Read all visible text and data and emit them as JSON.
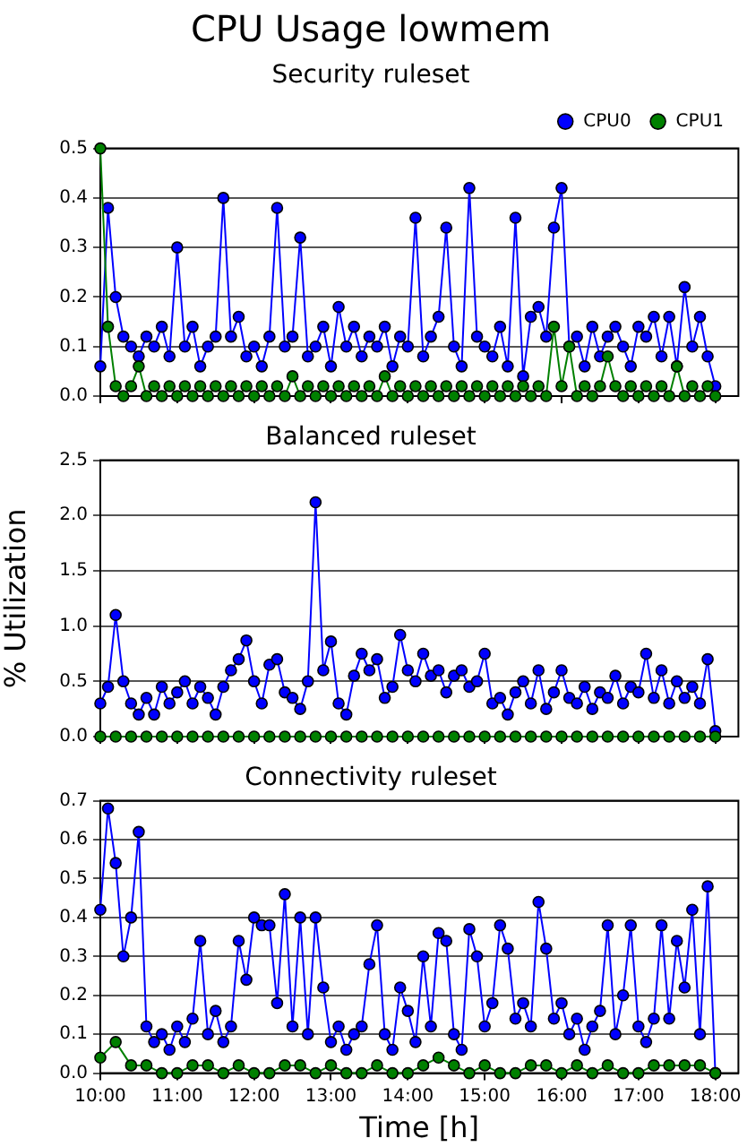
{
  "chart_data": [
    {
      "type": "line",
      "title": "CPU Usage lowmem",
      "subtitle": "Security ruleset",
      "legend": "top right",
      "grid": "y",
      "marker": "circle",
      "line_style": "solid",
      "tick_labels": "y",
      "x": [
        10,
        10.1,
        10.2,
        10.3,
        10.4,
        10.5,
        10.6,
        10.7,
        10.8,
        10.9,
        11,
        11.1,
        11.2,
        11.3,
        11.4,
        11.5,
        11.6,
        11.7,
        11.8,
        11.9,
        12,
        12.1,
        12.2,
        12.3,
        12.4,
        12.5,
        12.6,
        12.7,
        12.8,
        12.9,
        13,
        13.1,
        13.2,
        13.3,
        13.4,
        13.5,
        13.6,
        13.7,
        13.8,
        13.9,
        14,
        14.1,
        14.2,
        14.3,
        14.4,
        14.5,
        14.6,
        14.7,
        14.8,
        14.9,
        15,
        15.1,
        15.2,
        15.3,
        15.4,
        15.5,
        15.6,
        15.7,
        15.8,
        15.9,
        16,
        16.1,
        16.2,
        16.3,
        16.4,
        16.5,
        16.6,
        16.7,
        16.8,
        16.9,
        17,
        17.1,
        17.2,
        17.3,
        17.4,
        17.5,
        17.6,
        17.7,
        17.8,
        17.9,
        18
      ],
      "xlim": [
        10,
        18.3
      ],
      "ylim": [
        0,
        0.5
      ],
      "yticks": [
        {
          "value": 0,
          "label": "0.0"
        },
        0.1,
        0.2,
        0.3,
        0.4,
        0.5
      ],
      "series": [
        {
          "name": "CPU0",
          "color": "#0000ff",
          "values": [
            0.06,
            0.38,
            0.2,
            0.12,
            0.1,
            0.08,
            0.12,
            0.1,
            0.14,
            0.08,
            0.3,
            0.1,
            0.14,
            0.06,
            0.1,
            0.12,
            0.4,
            0.12,
            0.16,
            0.08,
            0.1,
            0.06,
            0.12,
            0.38,
            0.1,
            0.12,
            0.32,
            0.08,
            0.1,
            0.14,
            0.06,
            0.18,
            0.1,
            0.14,
            0.08,
            0.12,
            0.1,
            0.14,
            0.06,
            0.12,
            0.1,
            0.36,
            0.08,
            0.12,
            0.16,
            0.34,
            0.1,
            0.06,
            0.42,
            0.12,
            0.1,
            0.08,
            0.14,
            0.06,
            0.36,
            0.04,
            0.16,
            0.18,
            0.12,
            0.34,
            0.42,
            0.1,
            0.12,
            0.06,
            0.14,
            0.08,
            0.12,
            0.14,
            0.1,
            0.06,
            0.14,
            0.12,
            0.16,
            0.08,
            0.16,
            0.06,
            0.22,
            0.1,
            0.16,
            0.08,
            0.02
          ]
        },
        {
          "name": "CPU1",
          "color": "#008000",
          "values": [
            0.5,
            0.14,
            0.02,
            0,
            0.02,
            0.06,
            0,
            0.02,
            0,
            0.02,
            0,
            0.02,
            0,
            0.02,
            0,
            0.02,
            0,
            0.02,
            0,
            0.02,
            0,
            0.02,
            0,
            0.02,
            0,
            0.04,
            0,
            0.02,
            0,
            0.02,
            0,
            0.02,
            0,
            0.02,
            0,
            0.02,
            0,
            0.04,
            0,
            0.02,
            0,
            0.02,
            0,
            0.02,
            0,
            0.02,
            0,
            0.02,
            0,
            0.02,
            0,
            0.02,
            0,
            0.02,
            0,
            0.02,
            0,
            0.02,
            0,
            0.14,
            0.02,
            0.1,
            0,
            0.02,
            0,
            0.02,
            0.08,
            0.02,
            0,
            0.02,
            0,
            0.02,
            0,
            0.02,
            0,
            0.06,
            0,
            0.02,
            0,
            0.02,
            0
          ]
        }
      ]
    },
    {
      "type": "line",
      "title": "Balanced ruleset",
      "ylabel": "% Utilization",
      "grid": "y",
      "marker": "circle",
      "line_style": "solid",
      "tick_labels": "y",
      "x": [
        10,
        10.1,
        10.2,
        10.3,
        10.4,
        10.5,
        10.6,
        10.7,
        10.8,
        10.9,
        11,
        11.1,
        11.2,
        11.3,
        11.4,
        11.5,
        11.6,
        11.7,
        11.8,
        11.9,
        12,
        12.1,
        12.2,
        12.3,
        12.4,
        12.5,
        12.6,
        12.7,
        12.8,
        12.9,
        13,
        13.1,
        13.2,
        13.3,
        13.4,
        13.5,
        13.6,
        13.7,
        13.8,
        13.9,
        14,
        14.1,
        14.2,
        14.3,
        14.4,
        14.5,
        14.6,
        14.7,
        14.8,
        14.9,
        15,
        15.1,
        15.2,
        15.3,
        15.4,
        15.5,
        15.6,
        15.7,
        15.8,
        15.9,
        16,
        16.1,
        16.2,
        16.3,
        16.4,
        16.5,
        16.6,
        16.7,
        16.8,
        16.9,
        17,
        17.1,
        17.2,
        17.3,
        17.4,
        17.5,
        17.6,
        17.7,
        17.8,
        17.9,
        18
      ],
      "xlim": [
        10,
        18.3
      ],
      "ylim": [
        0,
        2.5
      ],
      "yticks": [
        {
          "value": 0,
          "label": "0.0"
        },
        0.5,
        {
          "value": 1,
          "label": "1.0"
        },
        1.5,
        {
          "value": 2,
          "label": "2.0"
        },
        2.5
      ],
      "series": [
        {
          "color": "#0000ff",
          "values": [
            0.3,
            0.45,
            1.1,
            0.5,
            0.3,
            0.2,
            0.35,
            0.2,
            0.45,
            0.3,
            0.4,
            0.5,
            0.3,
            0.45,
            0.35,
            0.2,
            0.45,
            0.6,
            0.7,
            0.87,
            0.5,
            0.3,
            0.65,
            0.7,
            0.4,
            0.35,
            0.25,
            0.5,
            2.12,
            0.6,
            0.86,
            0.3,
            0.2,
            0.55,
            0.75,
            0.6,
            0.7,
            0.35,
            0.45,
            0.92,
            0.6,
            0.5,
            0.75,
            0.55,
            0.6,
            0.4,
            0.55,
            0.6,
            0.45,
            0.5,
            0.75,
            0.3,
            0.35,
            0.2,
            0.4,
            0.5,
            0.3,
            0.6,
            0.25,
            0.4,
            0.6,
            0.35,
            0.3,
            0.45,
            0.25,
            0.4,
            0.35,
            0.55,
            0.3,
            0.45,
            0.4,
            0.75,
            0.35,
            0.6,
            0.3,
            0.5,
            0.35,
            0.45,
            0.3,
            0.7,
            0.05
          ]
        },
        {
          "color": "#008000",
          "x": [
            10,
            10.2,
            10.4,
            10.6,
            10.8,
            11,
            11.2,
            11.4,
            11.6,
            11.8,
            12,
            12.2,
            12.4,
            12.6,
            12.8,
            13,
            13.2,
            13.4,
            13.6,
            13.8,
            14,
            14.2,
            14.4,
            14.6,
            14.8,
            15,
            15.2,
            15.4,
            15.6,
            15.8,
            16,
            16.2,
            16.4,
            16.6,
            16.8,
            17,
            17.2,
            17.4,
            17.6,
            17.8,
            18
          ],
          "values": [
            0,
            0,
            0,
            0,
            0,
            0,
            0,
            0,
            0,
            0,
            0,
            0,
            0,
            0,
            0,
            0,
            0,
            0,
            0,
            0,
            0,
            0,
            0,
            0,
            0,
            0,
            0,
            0,
            0,
            0,
            0,
            0,
            0,
            0,
            0,
            0,
            0,
            0,
            0,
            0,
            0
          ]
        }
      ]
    },
    {
      "type": "line",
      "title": "Connectivity ruleset",
      "xlabel": "Time [h]",
      "grid": "y",
      "marker": "circle",
      "line_style": "solid",
      "x": [
        10,
        10.1,
        10.2,
        10.3,
        10.4,
        10.5,
        10.6,
        10.7,
        10.8,
        10.9,
        11,
        11.1,
        11.2,
        11.3,
        11.4,
        11.5,
        11.6,
        11.7,
        11.8,
        11.9,
        12,
        12.1,
        12.2,
        12.3,
        12.4,
        12.5,
        12.6,
        12.7,
        12.8,
        12.9,
        13,
        13.1,
        13.2,
        13.3,
        13.4,
        13.5,
        13.6,
        13.7,
        13.8,
        13.9,
        14,
        14.1,
        14.2,
        14.3,
        14.4,
        14.5,
        14.6,
        14.7,
        14.8,
        14.9,
        15,
        15.1,
        15.2,
        15.3,
        15.4,
        15.5,
        15.6,
        15.7,
        15.8,
        15.9,
        16,
        16.1,
        16.2,
        16.3,
        16.4,
        16.5,
        16.6,
        16.7,
        16.8,
        16.9,
        17,
        17.1,
        17.2,
        17.3,
        17.4,
        17.5,
        17.6,
        17.7,
        17.8,
        17.9,
        18
      ],
      "xlim": [
        10,
        18.3
      ],
      "xticks": [
        {
          "value": 10,
          "label": "10:00"
        },
        {
          "value": 11,
          "label": "11:00"
        },
        {
          "value": 12,
          "label": "12:00"
        },
        {
          "value": 13,
          "label": "13:00"
        },
        {
          "value": 14,
          "label": "14:00"
        },
        {
          "value": 15,
          "label": "15:00"
        },
        {
          "value": 16,
          "label": "16:00"
        },
        {
          "value": 17,
          "label": "17:00"
        },
        {
          "value": 18,
          "label": "18:00"
        }
      ],
      "ylim": [
        0,
        0.7
      ],
      "yticks": [
        {
          "value": 0,
          "label": "0.0"
        },
        0.1,
        0.2,
        0.3,
        0.4,
        0.5,
        0.6,
        0.7
      ],
      "series": [
        {
          "color": "#0000ff",
          "values": [
            0.42,
            0.68,
            0.54,
            0.3,
            0.4,
            0.62,
            0.12,
            0.08,
            0.1,
            0.06,
            0.12,
            0.08,
            0.14,
            0.34,
            0.1,
            0.16,
            0.08,
            0.12,
            0.34,
            0.24,
            0.4,
            0.38,
            0.38,
            0.18,
            0.46,
            0.12,
            0.4,
            0.1,
            0.4,
            0.22,
            0.08,
            0.12,
            0.06,
            0.1,
            0.12,
            0.28,
            0.38,
            0.1,
            0.06,
            0.22,
            0.16,
            0.08,
            0.3,
            0.12,
            0.36,
            0.34,
            0.1,
            0.06,
            0.37,
            0.3,
            0.12,
            0.18,
            0.38,
            0.32,
            0.14,
            0.18,
            0.12,
            0.44,
            0.32,
            0.14,
            0.18,
            0.1,
            0.14,
            0.06,
            0.12,
            0.16,
            0.38,
            0.1,
            0.2,
            0.38,
            0.12,
            0.08,
            0.14,
            0.38,
            0.14,
            0.34,
            0.22,
            0.42,
            0.1,
            0.48,
            0
          ]
        },
        {
          "color": "#008000",
          "x": [
            10,
            10.2,
            10.4,
            10.6,
            10.8,
            11,
            11.2,
            11.4,
            11.6,
            11.8,
            12,
            12.2,
            12.4,
            12.6,
            12.8,
            13,
            13.2,
            13.4,
            13.6,
            13.8,
            14,
            14.2,
            14.4,
            14.6,
            14.8,
            15,
            15.2,
            15.4,
            15.6,
            15.8,
            16,
            16.2,
            16.4,
            16.6,
            16.8,
            17,
            17.2,
            17.4,
            17.6,
            17.8,
            18
          ],
          "values": [
            0.04,
            0.08,
            0.02,
            0.02,
            0,
            0,
            0.02,
            0.02,
            0,
            0.02,
            0,
            0,
            0.02,
            0.02,
            0,
            0.02,
            0,
            0,
            0.02,
            0,
            0,
            0.02,
            0.04,
            0.02,
            0,
            0.02,
            0,
            0,
            0.02,
            0.02,
            0,
            0.02,
            0,
            0.02,
            0,
            0,
            0.02,
            0.02,
            0.02,
            0.02,
            0
          ]
        }
      ]
    }
  ]
}
